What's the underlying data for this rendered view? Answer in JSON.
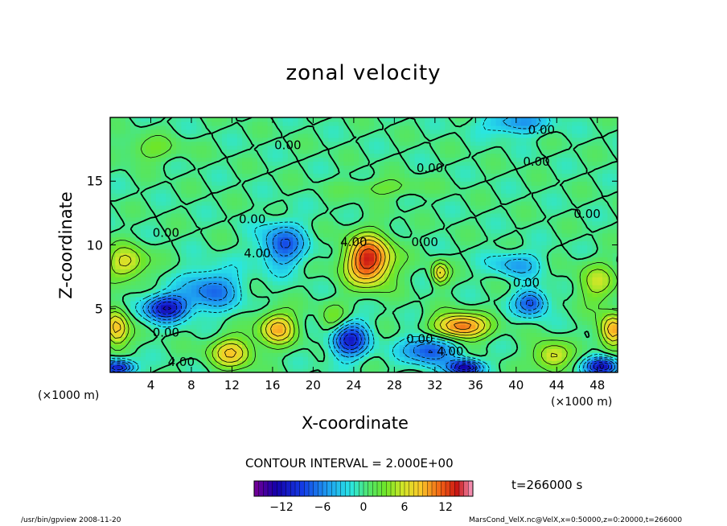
{
  "chart_data": {
    "type": "heatmap",
    "title": "zonal velocity",
    "xlabel": "X-coordinate",
    "ylabel": "Z-coordinate",
    "xlim": [
      0,
      50
    ],
    "ylim": [
      0,
      20
    ],
    "x_ticks": [
      "4",
      "8",
      "12",
      "16",
      "20",
      "24",
      "28",
      "32",
      "36",
      "40",
      "44",
      "48"
    ],
    "x_tick_values": [
      4,
      8,
      12,
      16,
      20,
      24,
      28,
      32,
      36,
      40,
      44,
      48
    ],
    "y_ticks": [
      "5",
      "10",
      "15"
    ],
    "y_tick_values": [
      5,
      10,
      15
    ],
    "x_unit_left": "(×1000 m)",
    "x_unit_right": "(×1000 m)",
    "contour_interval": "CONTOUR INTERVAL = 2.000E+00",
    "time_label": "t=266000 s",
    "colorbar": {
      "range": [
        -16,
        16
      ],
      "ticks": [
        "−12",
        "−6",
        "0",
        "6",
        "12"
      ],
      "tick_values": [
        -12,
        -6,
        0,
        6,
        12
      ]
    },
    "contour_labels": [
      {
        "text": "0.00",
        "x": 42.5,
        "z": 19.0
      },
      {
        "text": "0.00",
        "x": 17.5,
        "z": 17.8
      },
      {
        "text": "0.00",
        "x": 31.5,
        "z": 16.0
      },
      {
        "text": "0.00",
        "x": 42.0,
        "z": 16.5
      },
      {
        "text": "0.00",
        "x": 47.0,
        "z": 12.4
      },
      {
        "text": "0.00",
        "x": 14.0,
        "z": 12.0
      },
      {
        "text": "0.00",
        "x": 5.5,
        "z": 10.9
      },
      {
        "text": "4.00",
        "x": 14.5,
        "z": 9.3
      },
      {
        "text": "4.00",
        "x": 24.0,
        "z": 10.2
      },
      {
        "text": "0.00",
        "x": 31.0,
        "z": 10.2
      },
      {
        "text": "0.00",
        "x": 41.0,
        "z": 7.0
      },
      {
        "text": "0.00",
        "x": 5.5,
        "z": 3.1
      },
      {
        "text": "0.00",
        "x": 30.5,
        "z": 2.6
      },
      {
        "text": "4.00",
        "x": 33.5,
        "z": 1.6
      },
      {
        "text": "4.00",
        "x": 7.0,
        "z": 0.8
      }
    ],
    "features": [
      {
        "x": 25.5,
        "z": 8.8,
        "value": 14,
        "sx": 2.3,
        "sz": 1.9
      },
      {
        "x": 34.5,
        "z": 3.6,
        "value": 12,
        "sx": 2.6,
        "sz": 1.0
      },
      {
        "x": 49.5,
        "z": 3.3,
        "value": 10,
        "sx": 1.3,
        "sz": 1.3
      },
      {
        "x": 0.6,
        "z": 3.5,
        "value": 9,
        "sx": 1.2,
        "sz": 1.6
      },
      {
        "x": 16.5,
        "z": 3.5,
        "value": 9,
        "sx": 1.8,
        "sz": 1.3
      },
      {
        "x": 32.5,
        "z": 7.8,
        "value": 8,
        "sx": 0.8,
        "sz": 0.9
      },
      {
        "x": 1.6,
        "z": 8.6,
        "value": 7,
        "sx": 2.0,
        "sz": 1.3
      },
      {
        "x": 12.0,
        "z": 1.6,
        "value": 8,
        "sx": 2.2,
        "sz": 1.2
      },
      {
        "x": 43.5,
        "z": 1.3,
        "value": 7,
        "sx": 1.8,
        "sz": 1.1
      },
      {
        "x": 48.0,
        "z": 7.0,
        "value": 5,
        "sx": 2.0,
        "sz": 1.6
      },
      {
        "x": 22.0,
        "z": 4.0,
        "value": 4,
        "sx": 1.4,
        "sz": 1.4
      },
      {
        "x": 5.5,
        "z": 5.1,
        "value": -12,
        "sx": 2.2,
        "sz": 1.0
      },
      {
        "x": 10.0,
        "z": 6.5,
        "value": -7,
        "sx": 2.8,
        "sz": 1.6
      },
      {
        "x": 17.0,
        "z": 10.0,
        "value": -8,
        "sx": 2.2,
        "sz": 1.7
      },
      {
        "x": 23.5,
        "z": 2.6,
        "value": -11,
        "sx": 1.9,
        "sz": 1.4
      },
      {
        "x": 31.5,
        "z": 1.8,
        "value": -9,
        "sx": 2.5,
        "sz": 1.1
      },
      {
        "x": 35.0,
        "z": 0.4,
        "value": -14,
        "sx": 1.6,
        "sz": 0.6
      },
      {
        "x": 41.5,
        "z": 5.5,
        "value": -9,
        "sx": 1.5,
        "sz": 1.0
      },
      {
        "x": 40.0,
        "z": 8.5,
        "value": -5,
        "sx": 2.4,
        "sz": 1.0
      },
      {
        "x": 0.8,
        "z": 0.4,
        "value": -13,
        "sx": 1.5,
        "sz": 0.6
      },
      {
        "x": 48.5,
        "z": 0.5,
        "value": -13,
        "sx": 1.6,
        "sz": 0.7
      },
      {
        "x": 40.0,
        "z": 19.6,
        "value": -6,
        "sx": 3.0,
        "sz": 0.9
      },
      {
        "x": 4.0,
        "z": 17.5,
        "value": 3,
        "sx": 3.0,
        "sz": 1.0
      },
      {
        "x": 27.0,
        "z": 14.5,
        "value": 3,
        "sx": 4.0,
        "sz": 0.7
      }
    ]
  },
  "footer": {
    "left": "/usr/bin/gpview   2008-11-20",
    "right": "MarsCond_VelX.nc@VelX,x=0:50000,z=0:20000,t=266000"
  }
}
